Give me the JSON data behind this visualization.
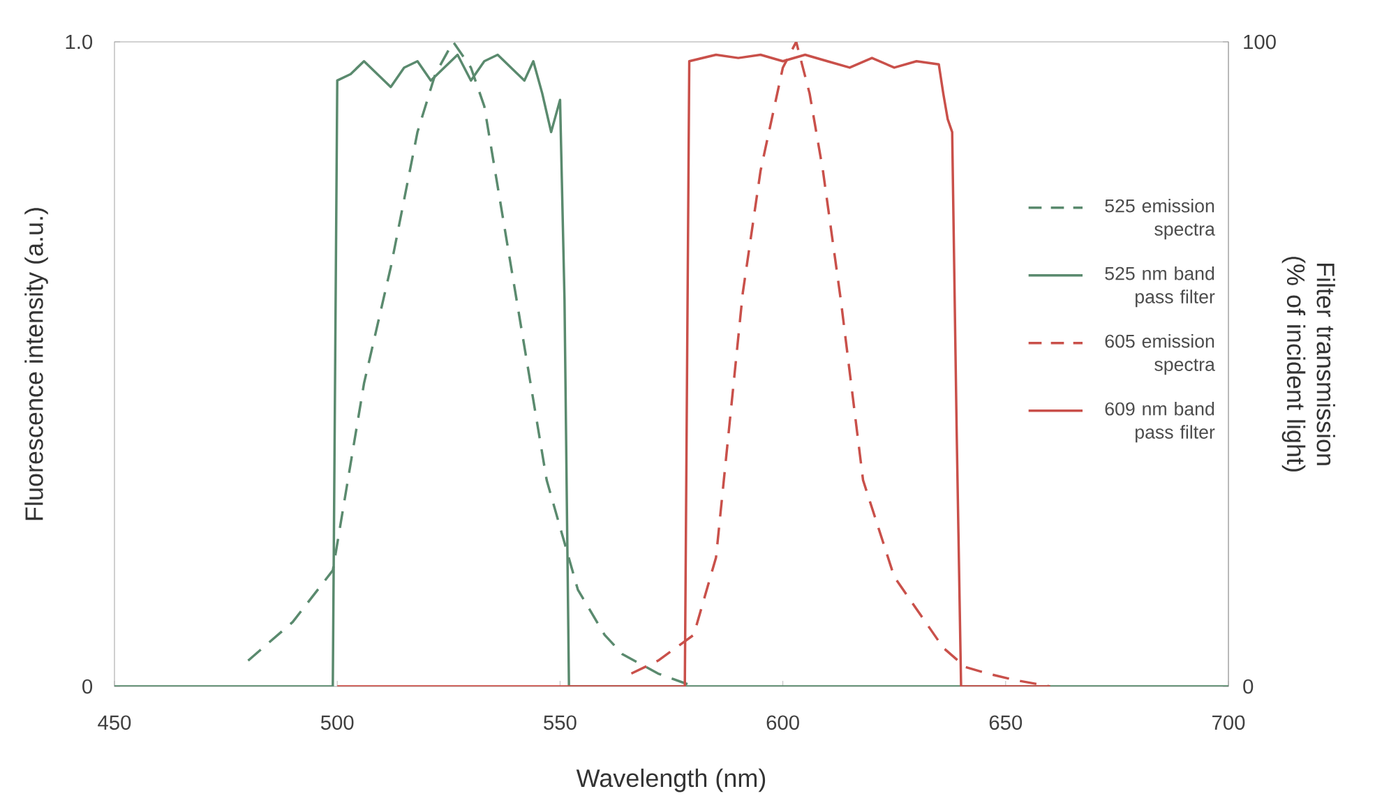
{
  "chart_data": {
    "type": "line",
    "xlabel": "Wavelength (nm)",
    "ylabel": "Fluorescence intensity (a.u.)",
    "y2label": "Filter transmission (% of incident light)",
    "xlim": [
      450,
      700
    ],
    "xticks": [
      450,
      500,
      550,
      600,
      650,
      700
    ],
    "ylim": [
      0,
      1
    ],
    "yticks": [
      0,
      {
        "value": 1,
        "label": "1.0"
      }
    ],
    "y2lim": [
      0,
      100
    ],
    "y2ticks": [
      0,
      100
    ],
    "legend": "right",
    "marker": "none",
    "grid": false,
    "series": [
      {
        "name": "525 emission spectra",
        "color": "#5a8a6e",
        "line_style": "dashed",
        "axis": "y",
        "x": [
          480,
          490,
          499,
          506,
          512,
          518,
          522,
          526,
          530,
          533,
          540,
          547,
          554,
          560,
          564,
          572,
          580
        ],
        "values": [
          0.04,
          0.1,
          0.18,
          0.47,
          0.65,
          0.86,
          0.95,
          1.0,
          0.96,
          0.9,
          0.61,
          0.32,
          0.15,
          0.08,
          0.05,
          0.02,
          0.0
        ]
      },
      {
        "name": "525 nm band pass filter",
        "color": "#5a8a6e",
        "line_style": "solid",
        "axis": "y2",
        "x": [
          450,
          499,
          500,
          503,
          506,
          509,
          512,
          515,
          518,
          521,
          524,
          527,
          530,
          533,
          536,
          539,
          542,
          544,
          546,
          548,
          550,
          551,
          552,
          700
        ],
        "values": [
          0,
          0,
          94,
          95,
          97,
          95,
          93,
          96,
          97,
          94,
          96,
          98,
          94,
          97,
          98,
          96,
          94,
          97,
          92,
          86,
          91,
          60,
          0,
          0
        ]
      },
      {
        "name": "605 emission spectra",
        "color": "#c9504a",
        "line_style": "dashed",
        "axis": "y",
        "x": [
          566,
          572,
          580,
          585,
          591,
          595,
          600,
          603,
          606,
          609,
          613,
          618,
          625,
          631,
          636,
          641,
          646,
          652,
          660
        ],
        "values": [
          0.02,
          0.04,
          0.08,
          0.2,
          0.61,
          0.8,
          0.96,
          1.0,
          0.92,
          0.8,
          0.6,
          0.32,
          0.17,
          0.11,
          0.06,
          0.03,
          0.02,
          0.01,
          0.0
        ]
      },
      {
        "name": "609 nm band pass filter",
        "color": "#c9504a",
        "line_style": "solid",
        "axis": "y2",
        "x": [
          500,
          578,
          579,
          585,
          590,
          595,
          600,
          605,
          610,
          615,
          620,
          625,
          630,
          635,
          636,
          637,
          638,
          639,
          640,
          660
        ],
        "values": [
          0,
          0,
          97,
          98,
          97.5,
          98,
          97,
          98,
          97,
          96,
          97.5,
          96,
          97,
          96.5,
          92,
          88,
          86,
          40,
          0,
          0
        ]
      }
    ]
  }
}
